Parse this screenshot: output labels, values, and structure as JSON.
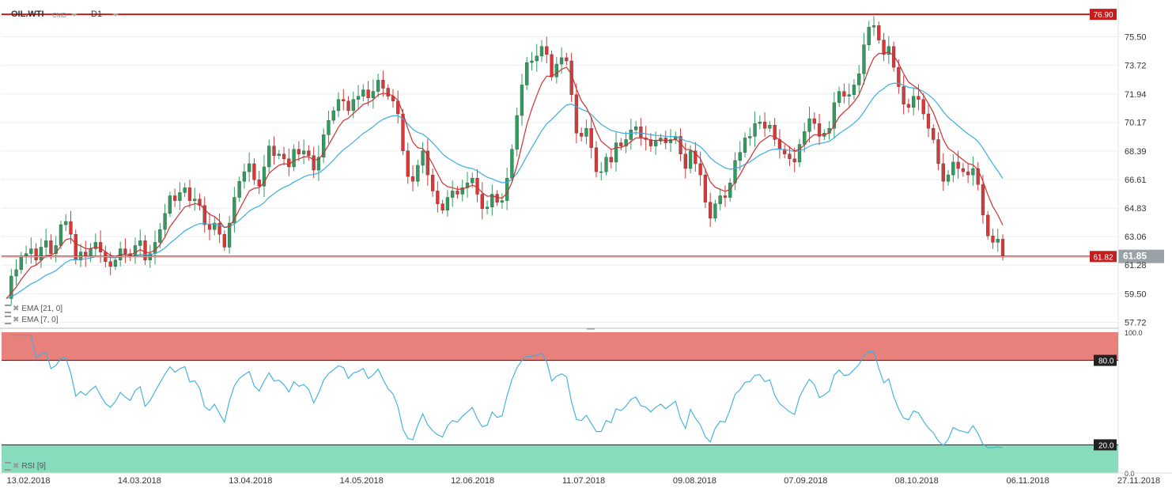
{
  "header": {
    "symbol": "OIL.WTI",
    "group": "CMD",
    "timeframe": "D1"
  },
  "indicators": {
    "ema21": "EMA [21, 0]",
    "ema7": "EMA [7, 0]",
    "rsi": "RSI [9]"
  },
  "price_axis": {
    "ticks": [
      "75.50",
      "73.72",
      "71.94",
      "70.17",
      "68.39",
      "66.61",
      "64.83",
      "63.06",
      "61.28",
      "59.50",
      "57.72"
    ],
    "tick_values": [
      75.5,
      73.72,
      71.94,
      70.17,
      68.39,
      66.61,
      64.83,
      63.06,
      61.28,
      59.5,
      57.72
    ],
    "ymin": 57.4,
    "ymax": 77.3
  },
  "levels": {
    "resistance": {
      "value": 76.9,
      "label": "76.90"
    },
    "support": {
      "value": 61.82,
      "label": "61.82"
    },
    "current": {
      "value": 61.85,
      "label": "61.85"
    }
  },
  "rsi_axis": {
    "ticks": [
      "100.0",
      "80.0",
      "20.0",
      "0.0"
    ],
    "tick_values": [
      100,
      80,
      20,
      0
    ],
    "overbought": {
      "value": 80,
      "label": "80.0"
    },
    "oversold": {
      "value": 20,
      "label": "20.0"
    }
  },
  "x_axis": {
    "labels": [
      "13.02.2018",
      "14.03.2018",
      "13.04.2018",
      "14.05.2018",
      "12.06.2018",
      "11.07.2018",
      "09.08.2018",
      "07.09.2018",
      "08.10.2018",
      "06.11.2018",
      "27.11.2018"
    ]
  },
  "colors": {
    "up": "#2e9e5e",
    "down": "#d93838",
    "ema7": "#d03030",
    "ema21": "#3aaee0",
    "rsi": "#3aaee0",
    "level": "#c41e1e",
    "overbought_zone": "#e8807c",
    "oversold_zone": "#86dcbb"
  },
  "chart_data": {
    "type": "candlestick",
    "title": "OIL.WTI D1",
    "timeframe": "D1",
    "close_series": [
      59.2,
      60.6,
      61.0,
      61.8,
      62.0,
      62.3,
      61.6,
      62.4,
      62.8,
      62.0,
      62.5,
      63.8,
      64.0,
      63.2,
      61.6,
      62.1,
      61.8,
      62.3,
      62.7,
      62.1,
      61.5,
      61.2,
      61.6,
      62.3,
      62.0,
      61.8,
      62.5,
      62.8,
      61.6,
      62.0,
      62.7,
      63.5,
      64.5,
      65.6,
      65.3,
      65.8,
      66.1,
      65.3,
      65.4,
      65.0,
      63.8,
      63.5,
      63.9,
      63.2,
      62.4,
      63.9,
      65.5,
      66.5,
      67.1,
      67.6,
      66.6,
      66.2,
      67.4,
      68.7,
      68.1,
      68.2,
      67.9,
      67.4,
      68.5,
      68.2,
      68.4,
      68.1,
      67.2,
      68.0,
      69.4,
      70.3,
      70.9,
      71.6,
      71.5,
      70.9,
      71.6,
      71.8,
      72.2,
      71.7,
      72.1,
      72.8,
      72.3,
      71.8,
      71.5,
      70.7,
      68.4,
      66.8,
      66.5,
      67.5,
      68.4,
      66.9,
      65.9,
      65.1,
      64.7,
      65.5,
      65.9,
      65.7,
      66.1,
      66.4,
      66.7,
      65.7,
      64.8,
      64.9,
      65.7,
      65.2,
      65.3,
      66.7,
      68.5,
      70.6,
      72.5,
      73.9,
      74.0,
      74.3,
      74.9,
      74.4,
      73.0,
      73.8,
      74.2,
      74.0,
      71.9,
      69.5,
      69.3,
      69.8,
      68.6,
      67.1,
      67.1,
      68.0,
      67.7,
      68.9,
      68.7,
      69.1,
      69.7,
      69.9,
      69.2,
      69.1,
      68.7,
      69.0,
      69.2,
      68.9,
      69.1,
      69.3,
      68.2,
      67.3,
      68.4,
      67.6,
      66.9,
      65.2,
      64.2,
      65.1,
      65.6,
      65.5,
      66.4,
      67.8,
      68.3,
      69.2,
      69.3,
      70.1,
      70.2,
      69.8,
      70.0,
      69.1,
      68.5,
      68.2,
      67.9,
      67.7,
      68.8,
      69.6,
      70.4,
      70.1,
      69.3,
      69.5,
      69.8,
      71.4,
      72.1,
      71.8,
      71.9,
      72.5,
      73.2,
      75.0,
      76.1,
      76.2,
      75.3,
      74.4,
      74.9,
      73.6,
      72.4,
      71.3,
      71.1,
      71.8,
      71.6,
      70.7,
      69.8,
      69.1,
      67.6,
      66.5,
      66.9,
      67.7,
      67.3,
      67.1,
      66.9,
      67.3,
      66.3,
      64.4,
      63.1,
      62.7,
      62.9,
      61.85
    ]
  }
}
